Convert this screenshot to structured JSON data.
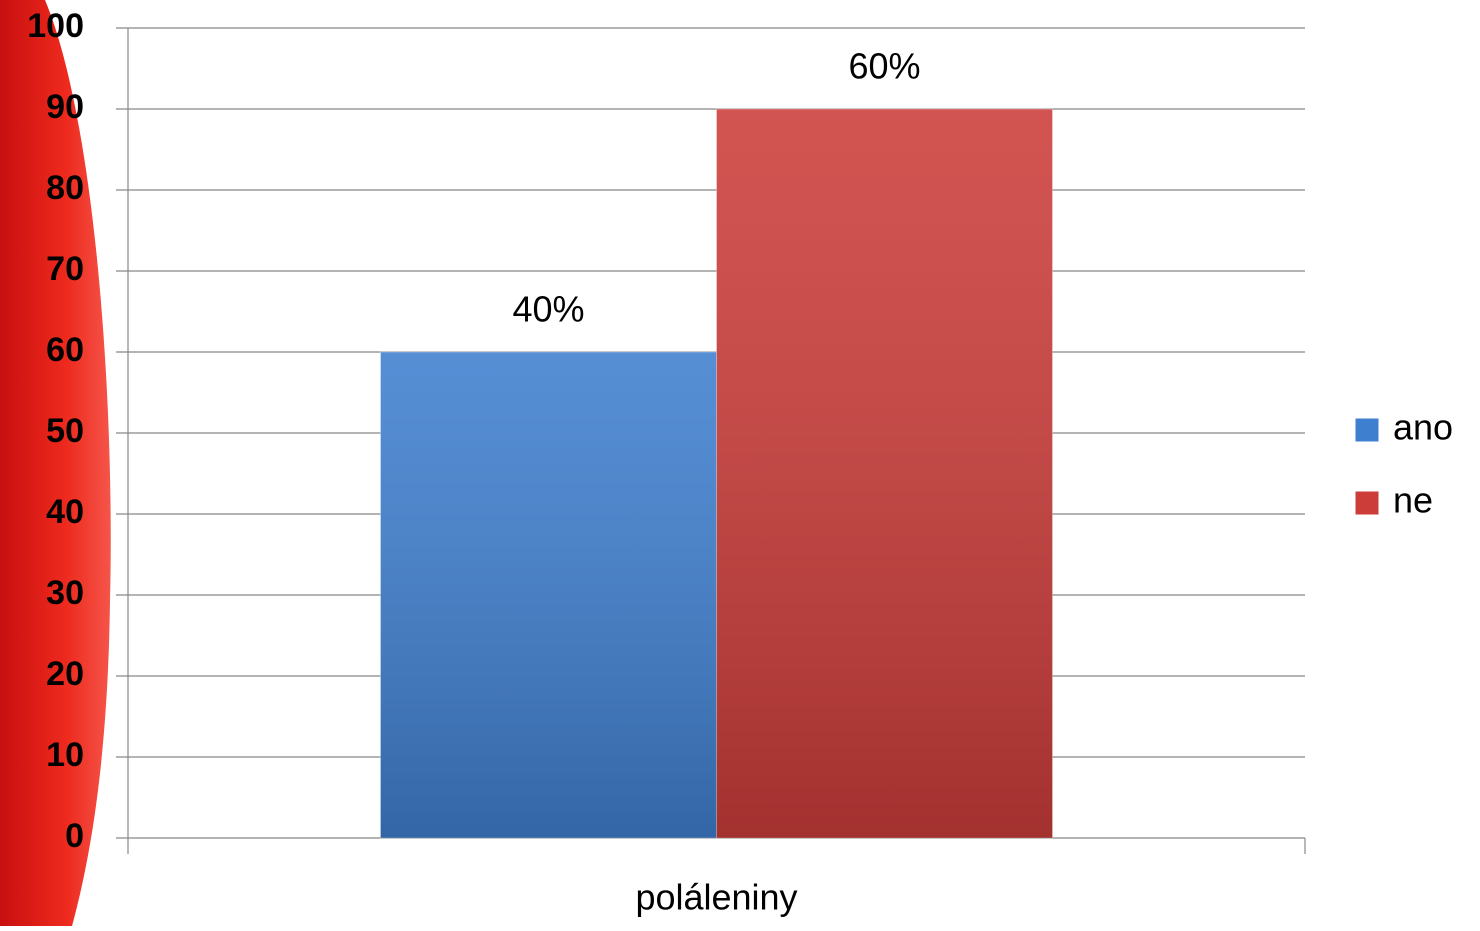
{
  "chart_data": {
    "type": "bar",
    "categories": [
      "poláleniny"
    ],
    "series": [
      {
        "name": "ano",
        "color": "#3f7fcf",
        "values": [
          60
        ]
      },
      {
        "name": "ne",
        "color": "#cc3d3a",
        "values": [
          90
        ]
      }
    ],
    "annotations": [
      "40%",
      "60%"
    ],
    "ylim": [
      0,
      100
    ],
    "yticks": [
      0,
      10,
      20,
      30,
      40,
      50,
      60,
      70,
      80,
      90,
      100
    ],
    "grid": true,
    "legend": "right"
  }
}
